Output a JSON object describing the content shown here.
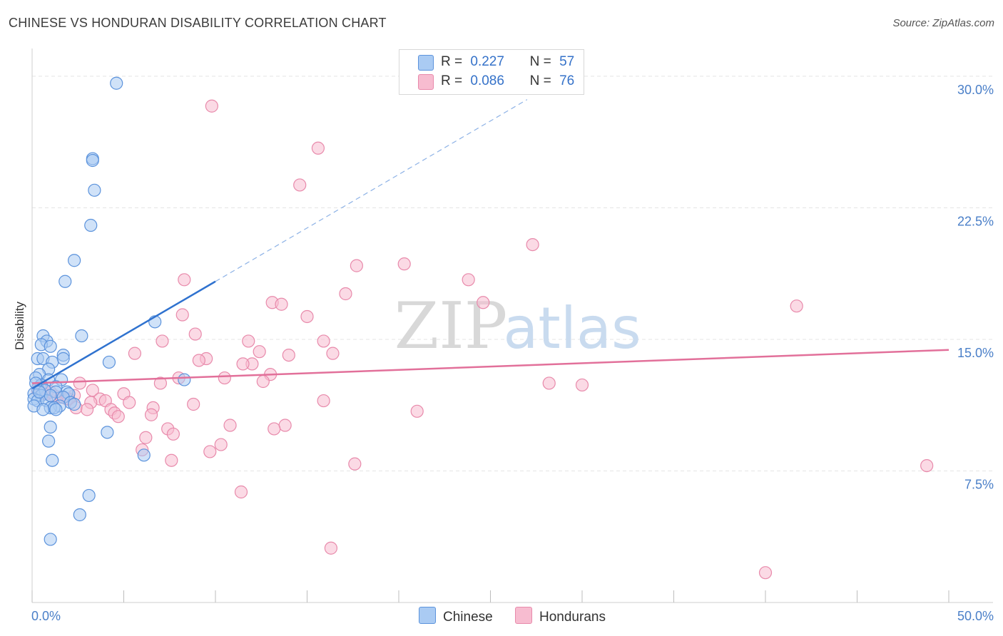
{
  "header": {
    "title": "CHINESE VS HONDURAN DISABILITY CORRELATION CHART",
    "source": "Source: ZipAtlas.com"
  },
  "legend": {
    "row1": {
      "r_label": "R =",
      "r_value": "0.227",
      "n_label": "N =",
      "n_value": "57"
    },
    "row2": {
      "r_label": "R =",
      "r_value": "0.086",
      "n_label": "N =",
      "n_value": "76"
    }
  },
  "bottom_legend": {
    "series1": "Chinese",
    "series2": "Hondurans"
  },
  "watermark": {
    "part1": "ZIP",
    "part2": "atlas"
  },
  "colors": {
    "chinese_fill": "#aacbf3",
    "chinese_stroke": "#5c93dc",
    "chinese_line": "#2f72cf",
    "hondurans_fill": "#f7bcd0",
    "hondurans_stroke": "#e88aab",
    "hondurans_line": "#e2709a"
  },
  "chart_data": {
    "type": "scatter",
    "title": "CHINESE VS HONDURAN DISABILITY CORRELATION CHART",
    "xlabel": "",
    "ylabel": "Disability",
    "xlim": [
      0,
      50
    ],
    "ylim": [
      0,
      31.5
    ],
    "x_tick_labels": [
      "0.0%",
      "50.0%"
    ],
    "y_ticks": [
      7.5,
      15.0,
      22.5,
      30.0
    ],
    "y_tick_labels": [
      "7.5%",
      "15.0%",
      "22.5%",
      "30.0%"
    ],
    "grid": true,
    "legend_position": "top-center",
    "series": [
      {
        "name": "Chinese",
        "r": 0.227,
        "n": 57,
        "trend": {
          "x0": 0.0,
          "y0": 12.2,
          "x1": 10.0,
          "y1": 18.3,
          "dashed_to_x": 27.0
        },
        "points": [
          [
            4.6,
            29.6
          ],
          [
            3.3,
            25.3
          ],
          [
            3.3,
            25.2
          ],
          [
            3.4,
            23.5
          ],
          [
            3.2,
            21.5
          ],
          [
            2.3,
            19.5
          ],
          [
            1.8,
            18.3
          ],
          [
            6.7,
            16.0
          ],
          [
            2.7,
            15.2
          ],
          [
            0.6,
            15.2
          ],
          [
            0.8,
            14.9
          ],
          [
            0.5,
            14.7
          ],
          [
            1.0,
            14.6
          ],
          [
            1.7,
            14.1
          ],
          [
            1.7,
            13.9
          ],
          [
            0.3,
            13.9
          ],
          [
            0.6,
            13.9
          ],
          [
            1.1,
            13.7
          ],
          [
            4.2,
            13.7
          ],
          [
            0.9,
            13.3
          ],
          [
            0.4,
            13.0
          ],
          [
            0.2,
            12.8
          ],
          [
            0.9,
            12.7
          ],
          [
            1.6,
            12.7
          ],
          [
            8.3,
            12.7
          ],
          [
            0.5,
            12.4
          ],
          [
            1.3,
            12.3
          ],
          [
            0.3,
            12.2
          ],
          [
            0.7,
            12.1
          ],
          [
            1.9,
            12.0
          ],
          [
            1.3,
            12.0
          ],
          [
            2.0,
            11.9
          ],
          [
            0.1,
            11.9
          ],
          [
            0.5,
            11.8
          ],
          [
            1.7,
            11.7
          ],
          [
            0.1,
            11.6
          ],
          [
            0.3,
            11.5
          ],
          [
            0.8,
            11.5
          ],
          [
            2.1,
            11.4
          ],
          [
            2.3,
            11.3
          ],
          [
            1.5,
            11.2
          ],
          [
            0.1,
            11.2
          ],
          [
            1.0,
            11.1
          ],
          [
            1.2,
            11.1
          ],
          [
            1.3,
            11.0
          ],
          [
            0.6,
            11.0
          ],
          [
            1.0,
            10.0
          ],
          [
            4.1,
            9.7
          ],
          [
            0.9,
            9.2
          ],
          [
            1.1,
            8.1
          ],
          [
            6.1,
            8.4
          ],
          [
            3.1,
            6.1
          ],
          [
            2.6,
            5.0
          ],
          [
            1.0,
            3.6
          ],
          [
            0.2,
            12.5
          ],
          [
            1.0,
            11.8
          ],
          [
            0.4,
            12.0
          ]
        ]
      },
      {
        "name": "Hondurans",
        "r": 0.086,
        "n": 76,
        "trend": {
          "x0": 0.0,
          "y0": 12.5,
          "x1": 50.0,
          "y1": 14.4
        },
        "points": [
          [
            9.8,
            28.3
          ],
          [
            15.6,
            25.9
          ],
          [
            14.6,
            23.8
          ],
          [
            27.3,
            20.4
          ],
          [
            17.7,
            19.2
          ],
          [
            20.3,
            19.3
          ],
          [
            23.8,
            18.4
          ],
          [
            8.3,
            18.4
          ],
          [
            17.1,
            17.6
          ],
          [
            13.1,
            17.1
          ],
          [
            13.6,
            17.0
          ],
          [
            24.6,
            17.1
          ],
          [
            41.7,
            16.9
          ],
          [
            8.2,
            16.4
          ],
          [
            15.0,
            16.3
          ],
          [
            8.9,
            15.3
          ],
          [
            7.1,
            14.9
          ],
          [
            11.8,
            14.9
          ],
          [
            15.9,
            14.9
          ],
          [
            12.4,
            14.3
          ],
          [
            5.6,
            14.2
          ],
          [
            14.0,
            14.1
          ],
          [
            16.4,
            14.2
          ],
          [
            9.5,
            13.9
          ],
          [
            9.1,
            13.8
          ],
          [
            12.0,
            13.6
          ],
          [
            11.5,
            13.6
          ],
          [
            13.0,
            13.0
          ],
          [
            10.5,
            12.8
          ],
          [
            8.0,
            12.8
          ],
          [
            12.6,
            12.6
          ],
          [
            7.0,
            12.5
          ],
          [
            2.6,
            12.5
          ],
          [
            28.2,
            12.5
          ],
          [
            30.0,
            12.4
          ],
          [
            3.3,
            12.1
          ],
          [
            5.0,
            11.9
          ],
          [
            1.2,
            11.8
          ],
          [
            0.8,
            11.9
          ],
          [
            2.3,
            11.8
          ],
          [
            1.6,
            11.7
          ],
          [
            1.9,
            11.6
          ],
          [
            2.0,
            11.6
          ],
          [
            3.7,
            11.6
          ],
          [
            4.0,
            11.5
          ],
          [
            15.9,
            11.5
          ],
          [
            3.2,
            11.4
          ],
          [
            5.3,
            11.4
          ],
          [
            8.8,
            11.3
          ],
          [
            2.4,
            11.1
          ],
          [
            6.6,
            11.1
          ],
          [
            4.3,
            11.0
          ],
          [
            3.0,
            11.0
          ],
          [
            4.5,
            10.8
          ],
          [
            4.7,
            10.6
          ],
          [
            6.5,
            10.7
          ],
          [
            21.0,
            10.9
          ],
          [
            10.8,
            10.1
          ],
          [
            13.8,
            10.1
          ],
          [
            13.2,
            9.9
          ],
          [
            7.4,
            9.9
          ],
          [
            7.7,
            9.6
          ],
          [
            6.2,
            9.4
          ],
          [
            10.3,
            9.0
          ],
          [
            6.0,
            8.7
          ],
          [
            9.7,
            8.6
          ],
          [
            7.6,
            8.1
          ],
          [
            17.6,
            7.9
          ],
          [
            48.8,
            7.8
          ],
          [
            11.4,
            6.3
          ],
          [
            16.3,
            3.1
          ],
          [
            40.0,
            1.7
          ],
          [
            0.4,
            12.3
          ],
          [
            0.3,
            12.1
          ],
          [
            1.0,
            12.0
          ],
          [
            0.6,
            11.9
          ]
        ]
      }
    ]
  }
}
